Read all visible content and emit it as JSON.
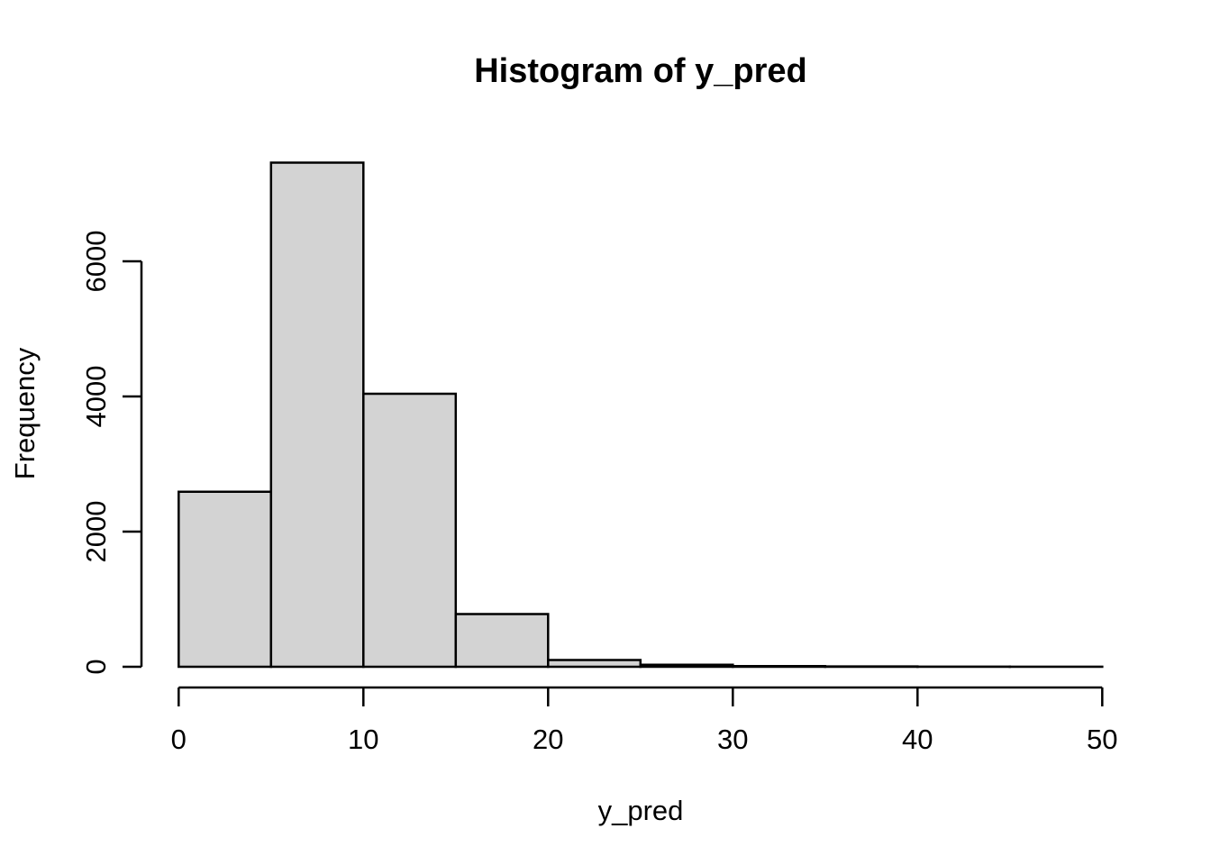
{
  "figure": {
    "background": "#ffffff"
  },
  "chart_data": {
    "type": "bar",
    "subtype": "histogram",
    "title": "Histogram of y_pred",
    "xlabel": "y_pred",
    "ylabel": "Frequency",
    "bin_edges": [
      0,
      5,
      10,
      15,
      20,
      25,
      30,
      35,
      40,
      45,
      50
    ],
    "counts": [
      2590,
      7460,
      4040,
      780,
      100,
      30,
      10,
      5,
      2,
      1
    ],
    "x_ticks": [
      0,
      10,
      20,
      30,
      40,
      50
    ],
    "y_ticks": [
      0,
      2000,
      4000,
      6000
    ],
    "xlim": [
      0,
      50
    ],
    "ylim": [
      0,
      6000
    ],
    "bar_fill": "#d3d3d3",
    "bar_stroke": "#000000",
    "axis_color": "#000000",
    "text_color": "#000000",
    "grid": false,
    "legend": false
  }
}
